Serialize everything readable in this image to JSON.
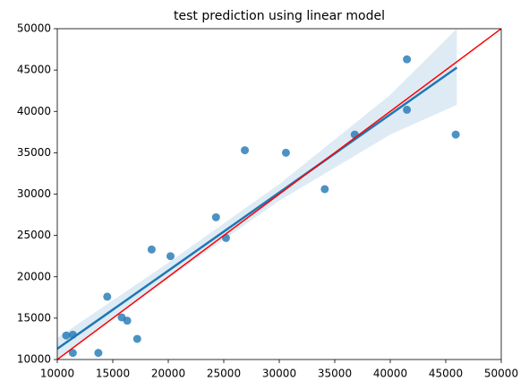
{
  "chart_data": {
    "type": "scatter",
    "title": "test prediction using linear model",
    "x": [
      10800,
      11400,
      11400,
      13700,
      14500,
      15800,
      16300,
      17200,
      18500,
      20200,
      24300,
      25200,
      26900,
      30600,
      34100,
      36800,
      41500,
      41500,
      45900
    ],
    "values": [
      12900,
      13000,
      10800,
      10800,
      17600,
      15100,
      14700,
      12500,
      23300,
      22500,
      27200,
      24700,
      35300,
      35000,
      30600,
      37200,
      46300,
      40200,
      37200
    ],
    "color": "#1f77b4",
    "regression_line": {
      "x": [
        10000,
        46000
      ],
      "y": [
        11300,
        45300
      ],
      "color": "#1f77b4"
    },
    "band": {
      "x": [
        10000,
        20000,
        30000,
        40000,
        46000
      ],
      "lower": [
        10100,
        19800,
        29200,
        37200,
        40800
      ],
      "upper": [
        12600,
        21700,
        31200,
        42000,
        50000
      ],
      "color": "#1f77b4"
    },
    "reference_line": {
      "x": [
        10000,
        50000
      ],
      "y": [
        10000,
        50000
      ],
      "color": "#ff0000"
    },
    "xlim": [
      10000,
      50000
    ],
    "ylim": [
      10000,
      50000
    ],
    "xticks": [
      10000,
      15000,
      20000,
      25000,
      30000,
      35000,
      40000,
      45000,
      50000
    ],
    "yticks": [
      10000,
      15000,
      20000,
      25000,
      30000,
      35000,
      40000,
      45000,
      50000
    ],
    "grid": false
  }
}
